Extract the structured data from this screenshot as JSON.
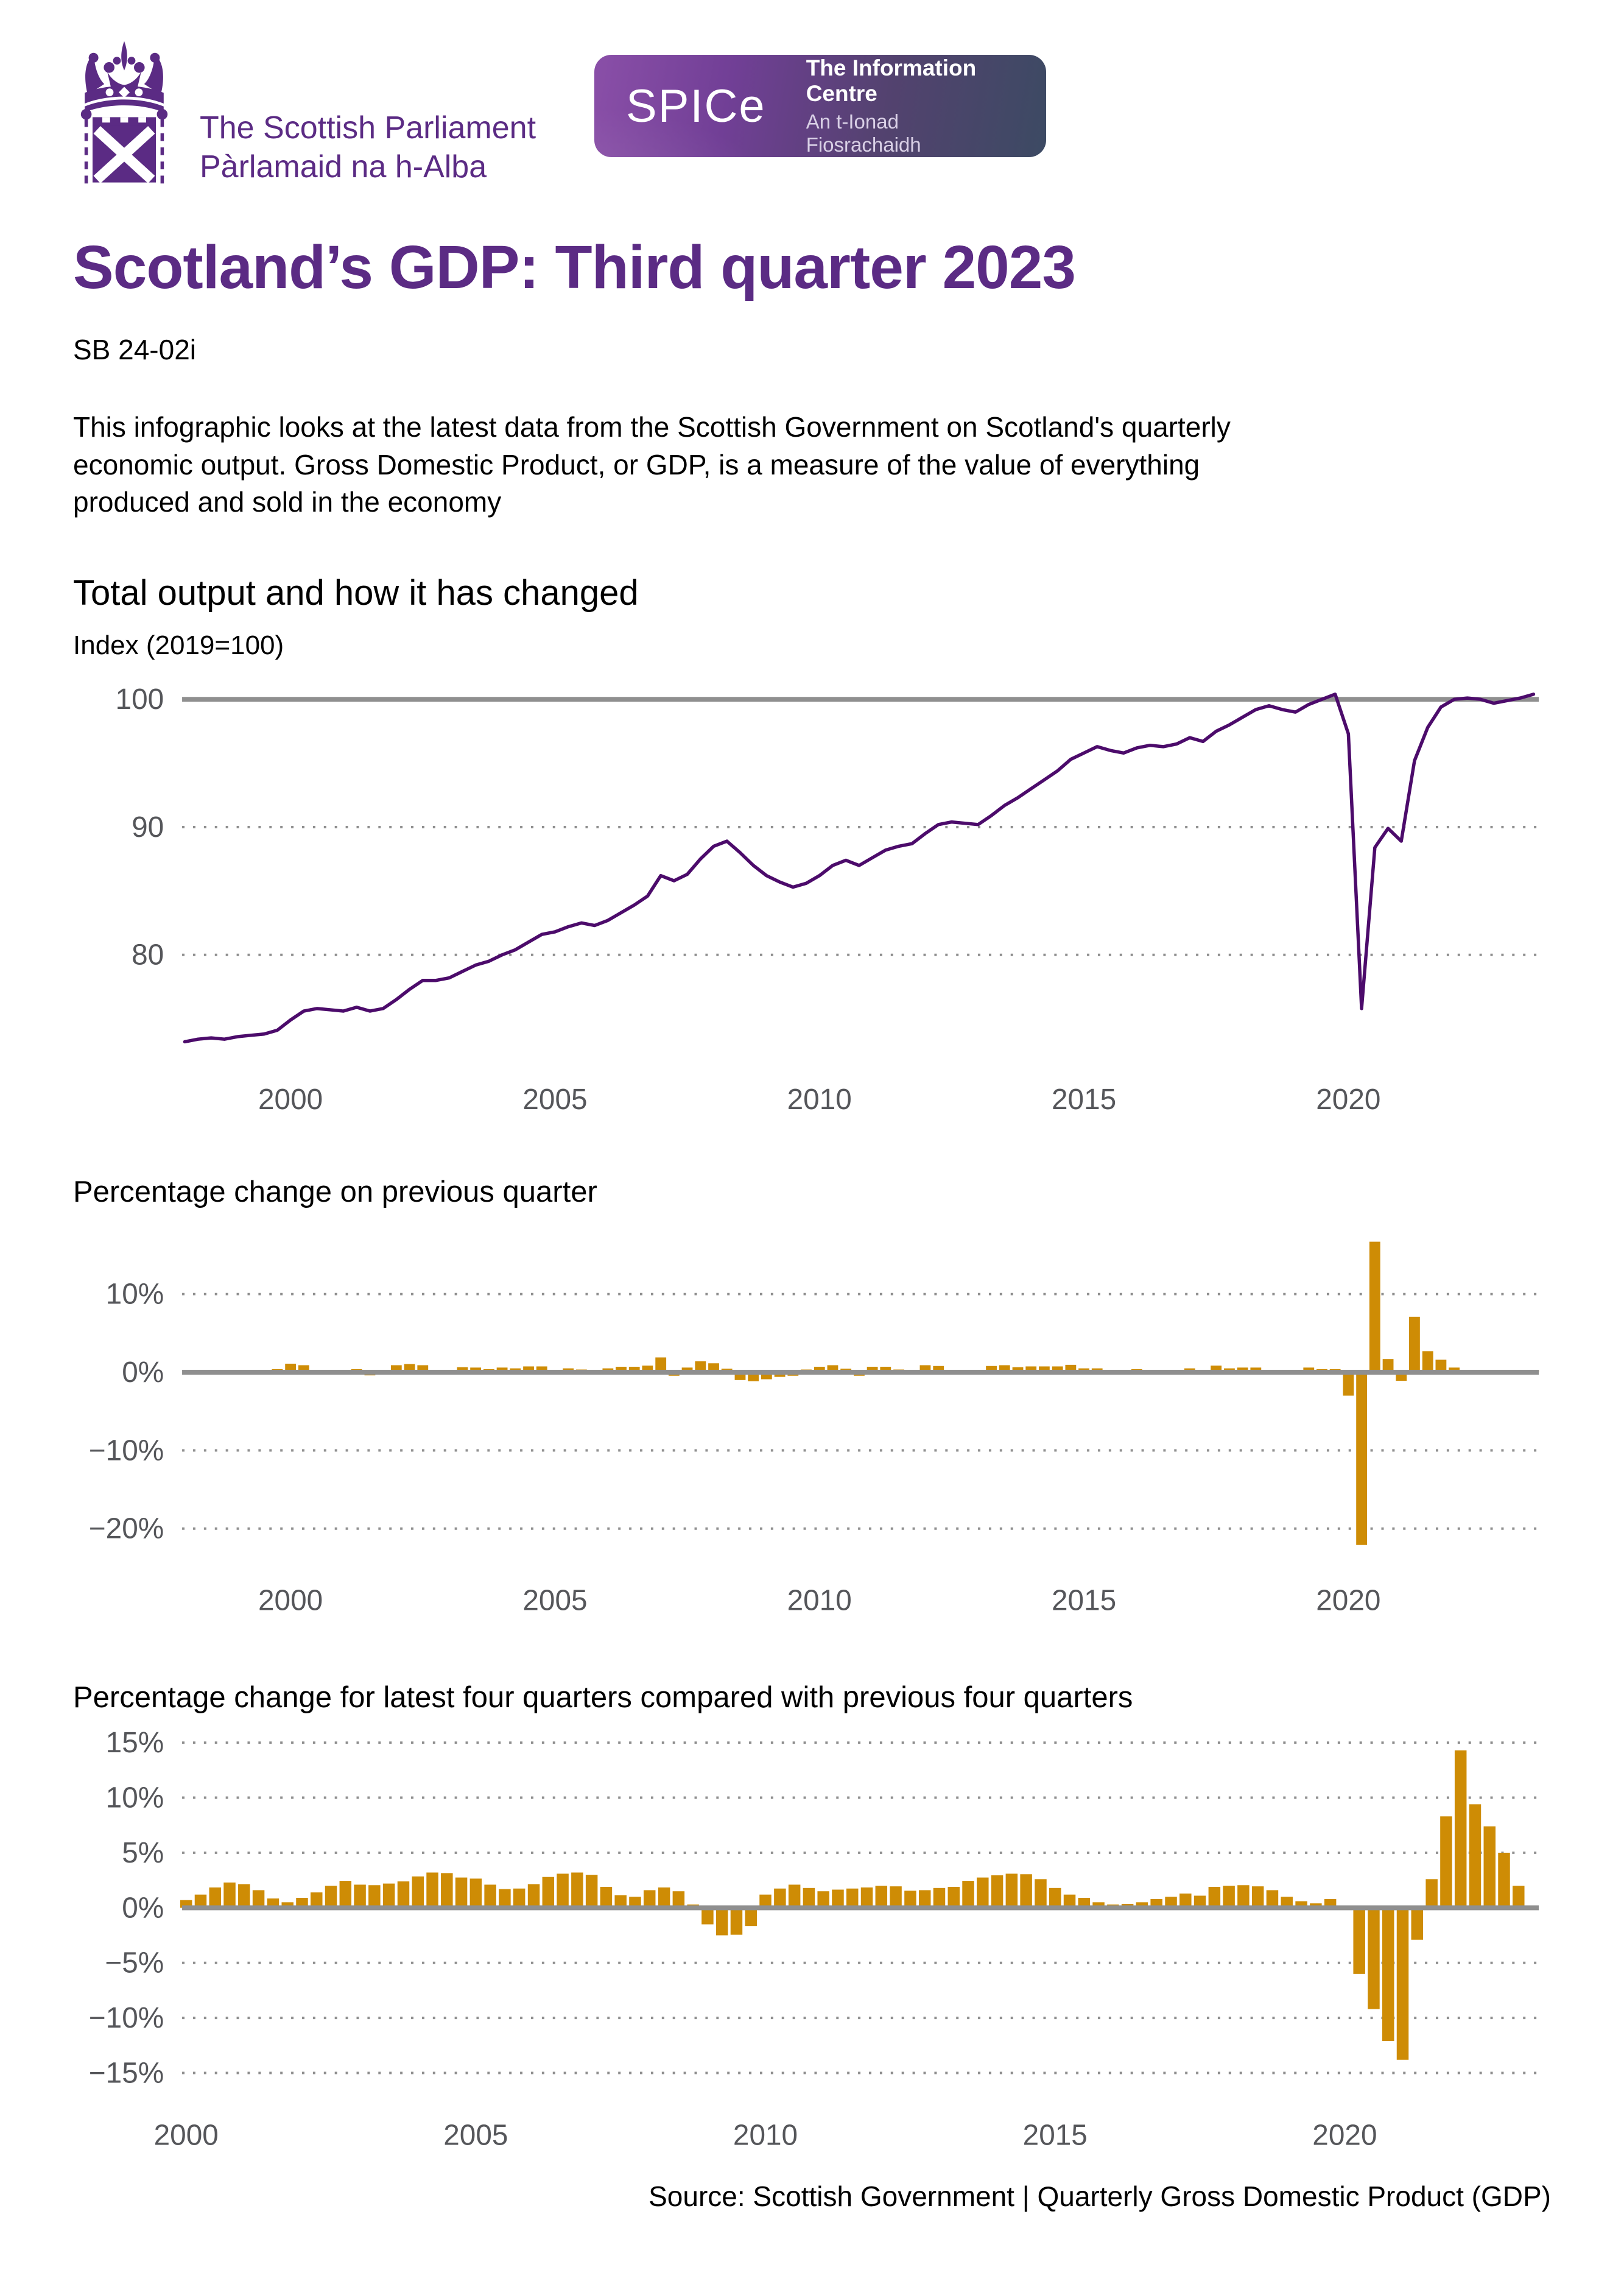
{
  "header": {
    "parliament_logo": {
      "title_en": "The Scottish Parliament",
      "title_gd": "Pàrlamaid na h-Alba"
    },
    "spice_logo": {
      "wordmark": "SPICe",
      "line1": "The Information Centre",
      "line2": "An t-Ionad Fiosrachaidh"
    }
  },
  "title": "Scotland’s GDP: Third quarter 2023",
  "bulletin_number": "SB 24-02i",
  "intro": "This infographic looks at the latest data from the Scottish Government on Scotland's quarterly economic output. Gross Domestic Product, or GDP, is a measure of the value of everything produced and sold in the economy",
  "source": "Source: Scottish Government |  Quarterly Gross Domestic Product (GDP)",
  "colors": {
    "brand_purple": "#5b2b84",
    "line_purple": "#4c0b6b",
    "bar_gold": "#ce8c05",
    "grid_gray": "#8f8f8f",
    "tick_gray": "#55565a"
  },
  "chart_data": [
    {
      "name": "gdp-index",
      "type": "line",
      "title": "Total output and how it has changed",
      "ylabel": "Index (2019=100)",
      "legend_position": "none",
      "grid": "horizontal-dotted",
      "x_start": 1998.0,
      "x_interval": 0.25,
      "xlim": [
        1997.95,
        2023.6
      ],
      "ylim": [
        101.4,
        72.0
      ],
      "xticks": [
        2000,
        2005,
        2010,
        2015,
        2020
      ],
      "yticks": [
        {
          "value": 100,
          "label": "100",
          "solid": true
        },
        {
          "value": 90,
          "label": "90",
          "solid": false
        },
        {
          "value": 80,
          "label": "80",
          "solid": false
        }
      ],
      "values": [
        73.2,
        73.4,
        73.5,
        73.4,
        73.6,
        73.7,
        73.8,
        74.1,
        74.9,
        75.6,
        75.8,
        75.7,
        75.6,
        75.9,
        75.6,
        75.8,
        76.5,
        77.3,
        78.0,
        78.0,
        78.2,
        78.7,
        79.2,
        79.5,
        80.0,
        80.4,
        81.0,
        81.6,
        81.8,
        82.2,
        82.5,
        82.3,
        82.7,
        83.3,
        83.9,
        84.6,
        86.2,
        85.8,
        86.3,
        87.5,
        88.5,
        88.9,
        88.0,
        87.0,
        86.2,
        85.7,
        85.3,
        85.6,
        86.2,
        87.0,
        87.4,
        87.0,
        87.6,
        88.2,
        88.5,
        88.7,
        89.5,
        90.2,
        90.4,
        90.3,
        90.2,
        90.9,
        91.7,
        92.3,
        93.0,
        93.7,
        94.4,
        95.3,
        95.8,
        96.3,
        96.0,
        95.8,
        96.2,
        96.4,
        96.3,
        96.5,
        97.0,
        96.7,
        97.5,
        98.0,
        98.6,
        99.2,
        99.5,
        99.2,
        99.0,
        99.6,
        100.0,
        100.4,
        97.3,
        75.8,
        88.4,
        89.9,
        88.9,
        95.2,
        97.8,
        99.4,
        100.0,
        100.1,
        100.0,
        99.7,
        99.9,
        100.1,
        100.4
      ]
    },
    {
      "name": "quarter-on-quarter-change",
      "type": "bar",
      "title": "Percentage change on previous quarter",
      "legend_position": "none",
      "grid": "horizontal-dotted",
      "x_start": 1998.25,
      "x_interval": 0.25,
      "xlim": [
        1997.95,
        2023.6
      ],
      "ylim": [
        18.4,
        -23.6
      ],
      "xticks": [
        2000,
        2005,
        2010,
        2015,
        2020
      ],
      "yticks": [
        {
          "value": 10,
          "label": "10%",
          "solid": false
        },
        {
          "value": 0,
          "label": "0%",
          "solid": true
        },
        {
          "value": -10,
          "label": "−10%",
          "solid": false
        },
        {
          "value": -20,
          "label": "−20%",
          "solid": false
        }
      ],
      "values": [
        0.3,
        0.15,
        -0.1,
        0.3,
        0.15,
        0.15,
        0.4,
        1.1,
        0.9,
        0.25,
        -0.1,
        -0.15,
        0.4,
        -0.4,
        0.25,
        0.9,
        1.05,
        0.9,
        0.0,
        0.25,
        0.65,
        0.6,
        0.4,
        0.6,
        0.5,
        0.75,
        0.75,
        0.25,
        0.5,
        0.35,
        -0.25,
        0.5,
        0.7,
        0.7,
        0.85,
        1.9,
        -0.45,
        0.6,
        1.4,
        1.15,
        0.45,
        -1.0,
        -1.15,
        -0.9,
        -0.6,
        -0.45,
        0.35,
        0.7,
        0.9,
        0.45,
        -0.45,
        0.7,
        0.7,
        0.35,
        0.25,
        0.9,
        0.8,
        0.2,
        -0.1,
        -0.1,
        0.8,
        0.9,
        0.65,
        0.75,
        0.75,
        0.75,
        0.95,
        0.5,
        0.5,
        -0.3,
        -0.2,
        0.4,
        0.2,
        -0.1,
        0.2,
        0.5,
        -0.3,
        0.85,
        0.5,
        0.6,
        0.6,
        0.3,
        -0.3,
        -0.2,
        0.6,
        0.4,
        0.4,
        -3.0,
        -22.1,
        16.7,
        1.7,
        -1.1,
        7.1,
        2.7,
        1.6,
        0.6,
        0.1,
        -0.1,
        -0.3,
        0.2,
        0.2,
        0.3
      ]
    },
    {
      "name": "four-quarter-change",
      "type": "bar",
      "title": "Percentage change for latest four quarters compared with previous four quarters",
      "legend_position": "none",
      "grid": "horizontal-dotted",
      "x_start": 2000.0,
      "x_interval": 0.25,
      "xlim": [
        1999.93,
        2023.35
      ],
      "ylim": [
        15.9,
        -15.9
      ],
      "xticks": [
        2000,
        2005,
        2010,
        2015,
        2020
      ],
      "yticks": [
        {
          "value": 15,
          "label": "15%",
          "solid": false
        },
        {
          "value": 10,
          "label": "10%",
          "solid": false
        },
        {
          "value": 5,
          "label": "5%",
          "solid": false
        },
        {
          "value": 0,
          "label": "0%",
          "solid": true
        },
        {
          "value": -5,
          "label": "−5%",
          "solid": false
        },
        {
          "value": -10,
          "label": "−10%",
          "solid": false
        },
        {
          "value": -15,
          "label": "−15%",
          "solid": false
        }
      ],
      "values": [
        0.7,
        1.2,
        1.85,
        2.3,
        2.15,
        1.6,
        0.85,
        0.5,
        0.9,
        1.4,
        2.0,
        2.45,
        2.1,
        2.05,
        2.2,
        2.4,
        2.85,
        3.2,
        3.15,
        2.75,
        2.65,
        2.1,
        1.7,
        1.75,
        2.15,
        2.8,
        3.1,
        3.2,
        3.0,
        1.9,
        1.15,
        1.0,
        1.6,
        1.85,
        1.5,
        0.3,
        -1.5,
        -2.5,
        -2.45,
        -1.65,
        1.2,
        1.75,
        2.1,
        1.8,
        1.5,
        1.65,
        1.75,
        1.85,
        2.0,
        1.95,
        1.55,
        1.6,
        1.8,
        1.9,
        2.45,
        2.75,
        2.95,
        3.1,
        3.05,
        2.6,
        1.8,
        1.2,
        0.9,
        0.5,
        0.3,
        0.35,
        0.5,
        0.8,
        1.0,
        1.3,
        1.1,
        1.9,
        2.0,
        2.05,
        1.95,
        1.6,
        1.0,
        0.6,
        0.4,
        0.8,
        0.15,
        -6.0,
        -9.2,
        -12.1,
        -13.8,
        -2.9,
        2.6,
        8.3,
        14.3,
        9.4,
        7.4,
        5.0,
        2.0
      ]
    }
  ]
}
